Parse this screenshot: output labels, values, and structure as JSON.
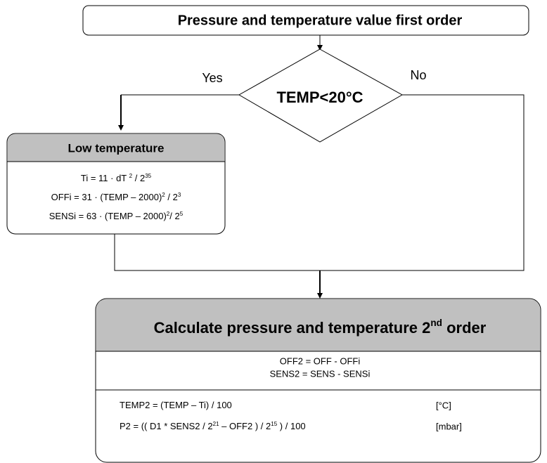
{
  "start": {
    "label": "Pressure and temperature value first order"
  },
  "decision": {
    "label": "TEMP<20°C",
    "yes": "Yes",
    "no": "No"
  },
  "low_temperature": {
    "title": "Low temperature",
    "formulas": [
      [
        "Ti = 11 · dT ",
        "2",
        " / 2",
        "35"
      ],
      [
        "OFFi = 31 · (TEMP – 2000)",
        "2",
        " / 2",
        "3"
      ],
      [
        "SENSi = 63 · (TEMP – 2000)",
        "2",
        "/ 2",
        "5"
      ]
    ]
  },
  "calculate": {
    "title": [
      "Calculate pressure and temperature 2",
      "nd",
      " order"
    ],
    "lines": [
      "OFF2 = OFF - OFFi",
      "SENS2 = SENS - SENSi"
    ],
    "results": [
      {
        "formula": [
          "TEMP2 = (TEMP – Ti) / 100"
        ],
        "unit": "[°C]"
      },
      {
        "formula": [
          "P2 = (( D1 * SENS2 / 2",
          "21",
          " – OFF2 ) / 2",
          "15",
          " ) / 100"
        ],
        "unit": "[mbar]"
      }
    ]
  }
}
